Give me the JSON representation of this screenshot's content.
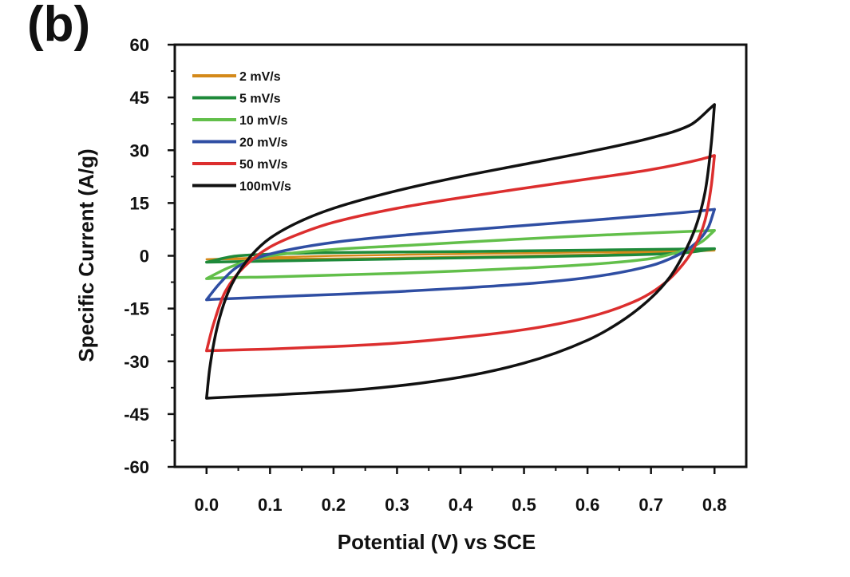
{
  "panel_label": "(b)",
  "chart_data": {
    "type": "line",
    "title": "",
    "xlabel": "Potential (V) vs SCE",
    "ylabel": "Specific Current (A/g)",
    "xlim": [
      -0.05,
      0.85
    ],
    "ylim": [
      -60,
      60
    ],
    "xticks": [
      0.0,
      0.1,
      0.2,
      0.3,
      0.4,
      0.5,
      0.6,
      0.7,
      0.8
    ],
    "xtick_labels": [
      "0.0",
      "0.1",
      "0.2",
      "0.3",
      "0.4",
      "0.5",
      "0.6",
      "0.7",
      "0.8"
    ],
    "yticks": [
      60,
      45,
      30,
      15,
      0,
      -15,
      -30,
      -45,
      -60
    ],
    "ytick_labels": [
      "60",
      "45",
      "30",
      "15",
      "0",
      "-15",
      "-30",
      "-45",
      "-60"
    ],
    "legend_position": "top-left",
    "grid": false,
    "series": [
      {
        "name": "2  mV/s",
        "color": "#d4891a",
        "upper": {
          "x": [
            0.0,
            0.2,
            0.4,
            0.6,
            0.8
          ],
          "y": [
            -1.0,
            0.0,
            0.5,
            1.0,
            1.5
          ]
        },
        "lower": {
          "x": [
            0.8,
            0.6,
            0.4,
            0.2,
            0.0
          ],
          "y": [
            1.5,
            0.3,
            -0.3,
            -0.8,
            -1.0
          ]
        }
      },
      {
        "name": "5  mV/s",
        "color": "#1e8a3a",
        "upper": {
          "x": [
            0.0,
            0.05,
            0.2,
            0.4,
            0.6,
            0.8
          ],
          "y": [
            -1.8,
            0.0,
            0.9,
            1.2,
            1.6,
            2.0
          ]
        },
        "lower": {
          "x": [
            0.8,
            0.75,
            0.6,
            0.4,
            0.2,
            0.0
          ],
          "y": [
            2.0,
            0.8,
            0.0,
            -0.6,
            -1.2,
            -1.8
          ]
        }
      },
      {
        "name": "10 mV/s",
        "color": "#62bf4a",
        "upper": {
          "x": [
            0.0,
            0.04,
            0.1,
            0.2,
            0.3,
            0.4,
            0.5,
            0.6,
            0.7,
            0.8
          ],
          "y": [
            -6.5,
            -3.0,
            0.0,
            1.8,
            2.8,
            3.8,
            4.8,
            5.7,
            6.5,
            7.2
          ]
        },
        "lower": {
          "x": [
            0.8,
            0.78,
            0.75,
            0.7,
            0.6,
            0.5,
            0.4,
            0.3,
            0.2,
            0.1,
            0.02,
            0.0
          ],
          "y": [
            7.2,
            4.0,
            1.5,
            -0.8,
            -2.5,
            -3.5,
            -4.3,
            -5.0,
            -5.5,
            -6.0,
            -6.3,
            -6.5
          ]
        }
      },
      {
        "name": "20 mV/s",
        "color": "#2f4ea3",
        "upper": {
          "x": [
            0.0,
            0.02,
            0.05,
            0.1,
            0.2,
            0.3,
            0.4,
            0.5,
            0.6,
            0.7,
            0.78,
            0.8
          ],
          "y": [
            -12.5,
            -8.0,
            -3.0,
            0.5,
            3.8,
            5.7,
            7.2,
            8.6,
            10.0,
            11.5,
            12.8,
            13.2
          ]
        },
        "lower": {
          "x": [
            0.8,
            0.79,
            0.77,
            0.74,
            0.7,
            0.6,
            0.5,
            0.4,
            0.3,
            0.2,
            0.1,
            0.02,
            0.0
          ],
          "y": [
            13.2,
            8.0,
            3.5,
            0.0,
            -2.8,
            -6.2,
            -8.0,
            -9.2,
            -10.2,
            -11.0,
            -11.7,
            -12.3,
            -12.5
          ]
        }
      },
      {
        "name": "50 mV/s",
        "color": "#dc2e2e",
        "upper": {
          "x": [
            0.0,
            0.01,
            0.03,
            0.06,
            0.1,
            0.15,
            0.2,
            0.3,
            0.4,
            0.5,
            0.6,
            0.7,
            0.78,
            0.8
          ],
          "y": [
            -27.0,
            -20.0,
            -10.0,
            -3.0,
            2.5,
            6.5,
            9.5,
            13.5,
            16.5,
            19.2,
            21.8,
            24.5,
            27.5,
            28.5
          ]
        },
        "lower": {
          "x": [
            0.8,
            0.795,
            0.785,
            0.77,
            0.75,
            0.72,
            0.68,
            0.6,
            0.5,
            0.4,
            0.3,
            0.2,
            0.1,
            0.02,
            0.0
          ],
          "y": [
            28.5,
            20.0,
            10.0,
            3.0,
            -2.5,
            -8.0,
            -12.5,
            -17.5,
            -21.0,
            -23.2,
            -24.8,
            -25.8,
            -26.5,
            -26.9,
            -27.0
          ]
        }
      },
      {
        "name": "100mV/s",
        "color": "#111111",
        "upper": {
          "x": [
            0.0,
            0.005,
            0.02,
            0.04,
            0.07,
            0.1,
            0.15,
            0.2,
            0.3,
            0.4,
            0.5,
            0.6,
            0.7,
            0.76,
            0.8
          ],
          "y": [
            -40.5,
            -32.0,
            -18.0,
            -8.0,
            0.0,
            5.0,
            10.0,
            13.5,
            18.5,
            22.5,
            26.0,
            29.5,
            33.5,
            37.0,
            43.0
          ]
        },
        "lower": {
          "x": [
            0.8,
            0.795,
            0.785,
            0.77,
            0.75,
            0.73,
            0.7,
            0.65,
            0.6,
            0.5,
            0.4,
            0.3,
            0.2,
            0.1,
            0.03,
            0.0
          ],
          "y": [
            43.0,
            32.0,
            18.0,
            8.0,
            0.0,
            -6.0,
            -12.0,
            -19.0,
            -24.0,
            -30.5,
            -34.5,
            -37.0,
            -38.6,
            -39.6,
            -40.2,
            -40.5
          ]
        }
      }
    ]
  }
}
